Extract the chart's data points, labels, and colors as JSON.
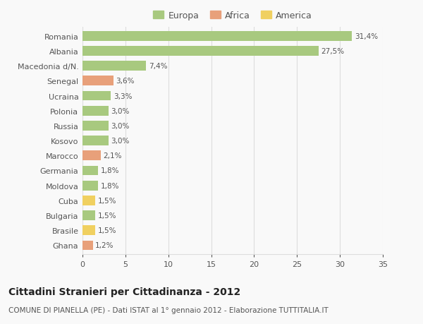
{
  "categories": [
    "Romania",
    "Albania",
    "Macedonia d/N.",
    "Senegal",
    "Ucraina",
    "Polonia",
    "Russia",
    "Kosovo",
    "Marocco",
    "Germania",
    "Moldova",
    "Cuba",
    "Bulgaria",
    "Brasile",
    "Ghana"
  ],
  "values": [
    31.4,
    27.5,
    7.4,
    3.6,
    3.3,
    3.0,
    3.0,
    3.0,
    2.1,
    1.8,
    1.8,
    1.5,
    1.5,
    1.5,
    1.2
  ],
  "labels": [
    "31,4%",
    "27,5%",
    "7,4%",
    "3,6%",
    "3,3%",
    "3,0%",
    "3,0%",
    "3,0%",
    "2,1%",
    "1,8%",
    "1,8%",
    "1,5%",
    "1,5%",
    "1,5%",
    "1,2%"
  ],
  "continents": [
    "Europa",
    "Europa",
    "Europa",
    "Africa",
    "Europa",
    "Europa",
    "Europa",
    "Europa",
    "Africa",
    "Europa",
    "Europa",
    "America",
    "Europa",
    "America",
    "Africa"
  ],
  "colors": {
    "Europa": "#a8c97f",
    "Africa": "#e8a07a",
    "America": "#f0d060"
  },
  "title": "Cittadini Stranieri per Cittadinanza - 2012",
  "subtitle": "COMUNE DI PIANELLA (PE) - Dati ISTAT al 1° gennaio 2012 - Elaborazione TUTTITALIA.IT",
  "xlim": [
    0,
    35
  ],
  "xticks": [
    0,
    5,
    10,
    15,
    20,
    25,
    30,
    35
  ],
  "background_color": "#f9f9f9",
  "grid_color": "#dddddd",
  "bar_height": 0.65,
  "label_fontsize": 7.5,
  "ytick_fontsize": 8,
  "xtick_fontsize": 8,
  "title_fontsize": 10,
  "subtitle_fontsize": 7.5
}
